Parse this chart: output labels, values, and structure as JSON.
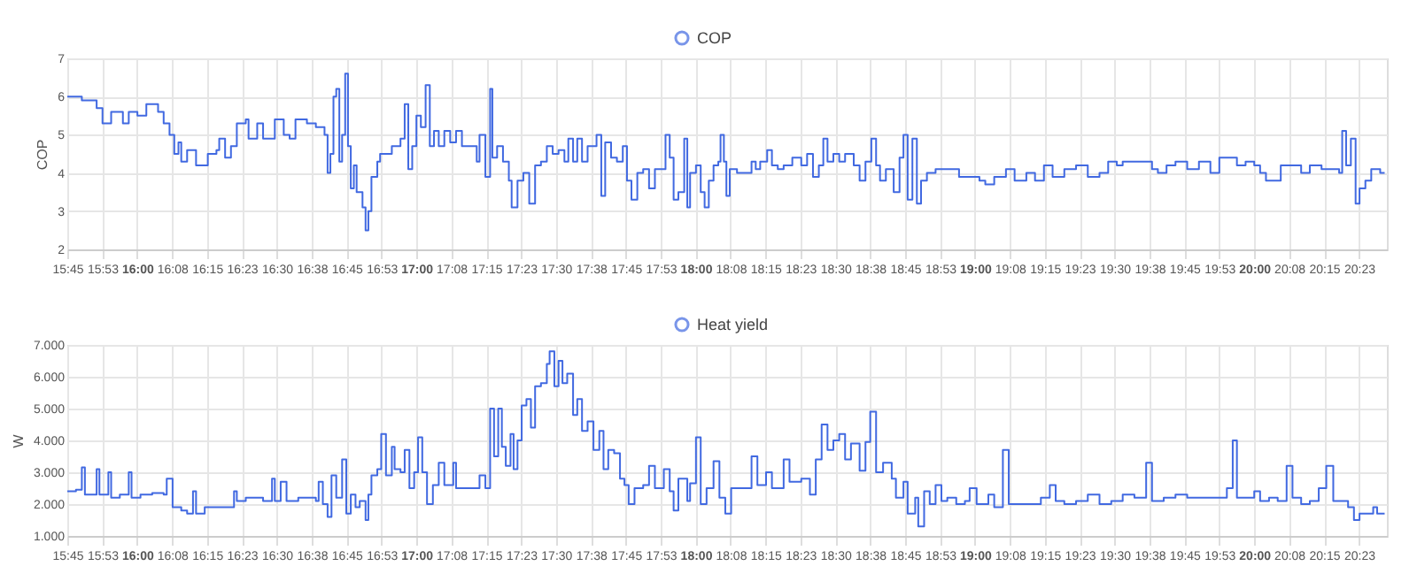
{
  "chart_data": [
    {
      "type": "step",
      "ylabel": "COP",
      "legend": "top",
      "grid": true,
      "xlim": [
        15.75,
        20.475
      ],
      "ylim": [
        2,
        7
      ],
      "yticks": [
        2,
        3,
        4,
        5,
        6,
        7
      ],
      "xticks": [
        {
          "value": 15.75,
          "label": "15:45"
        },
        {
          "value": 15.875,
          "label": "15:53"
        },
        {
          "value": 16.0,
          "label": "16:00"
        },
        {
          "value": 16.125,
          "label": "16:08"
        },
        {
          "value": 16.25,
          "label": "16:15"
        },
        {
          "value": 16.375,
          "label": "16:23"
        },
        {
          "value": 16.5,
          "label": "16:30"
        },
        {
          "value": 16.625,
          "label": "16:38"
        },
        {
          "value": 16.75,
          "label": "16:45"
        },
        {
          "value": 16.875,
          "label": "16:53"
        },
        {
          "value": 17.0,
          "label": "17:00"
        },
        {
          "value": 17.125,
          "label": "17:08"
        },
        {
          "value": 17.25,
          "label": "17:15"
        },
        {
          "value": 17.375,
          "label": "17:23"
        },
        {
          "value": 17.5,
          "label": "17:30"
        },
        {
          "value": 17.625,
          "label": "17:38"
        },
        {
          "value": 17.75,
          "label": "17:45"
        },
        {
          "value": 17.875,
          "label": "17:53"
        },
        {
          "value": 18.0,
          "label": "18:00"
        },
        {
          "value": 18.125,
          "label": "18:08"
        },
        {
          "value": 18.25,
          "label": "18:15"
        },
        {
          "value": 18.375,
          "label": "18:23"
        },
        {
          "value": 18.5,
          "label": "18:30"
        },
        {
          "value": 18.625,
          "label": "18:38"
        },
        {
          "value": 18.75,
          "label": "18:45"
        },
        {
          "value": 18.875,
          "label": "18:53"
        },
        {
          "value": 19.0,
          "label": "19:00"
        },
        {
          "value": 19.125,
          "label": "19:08"
        },
        {
          "value": 19.25,
          "label": "19:15"
        },
        {
          "value": 19.375,
          "label": "19:23"
        },
        {
          "value": 19.5,
          "label": "19:30"
        },
        {
          "value": 19.625,
          "label": "19:38"
        },
        {
          "value": 19.75,
          "label": "19:45"
        },
        {
          "value": 19.875,
          "label": "19:53"
        },
        {
          "value": 20.0,
          "label": "20:00"
        },
        {
          "value": 20.125,
          "label": "20:08"
        },
        {
          "value": 20.25,
          "label": "20:15"
        },
        {
          "value": 20.375,
          "label": "20:23"
        }
      ],
      "x": [
        15.75,
        15.802,
        15.855,
        15.876,
        15.907,
        15.949,
        15.97,
        16.001,
        16.033,
        16.075,
        16.095,
        16.116,
        16.133,
        16.148,
        16.158,
        16.179,
        16.211,
        16.232,
        16.253,
        16.284,
        16.294,
        16.315,
        16.336,
        16.357,
        16.389,
        16.399,
        16.43,
        16.451,
        16.493,
        16.525,
        16.546,
        16.567,
        16.608,
        16.64,
        16.671,
        16.682,
        16.692,
        16.703,
        16.713,
        16.724,
        16.734,
        16.745,
        16.755,
        16.765,
        16.776,
        16.786,
        16.807,
        16.818,
        16.828,
        16.839,
        16.86,
        16.87,
        16.912,
        16.943,
        16.958,
        16.971,
        16.985,
        17.0,
        17.016,
        17.033,
        17.048,
        17.063,
        17.08,
        17.1,
        17.121,
        17.142,
        17.163,
        17.205,
        17.216,
        17.226,
        17.247,
        17.264,
        17.272,
        17.289,
        17.31,
        17.331,
        17.341,
        17.362,
        17.383,
        17.404,
        17.425,
        17.446,
        17.467,
        17.488,
        17.509,
        17.53,
        17.544,
        17.561,
        17.576,
        17.593,
        17.613,
        17.645,
        17.662,
        17.676,
        17.697,
        17.718,
        17.739,
        17.754,
        17.77,
        17.791,
        17.812,
        17.833,
        17.854,
        17.875,
        17.892,
        17.907,
        17.921,
        17.938,
        17.959,
        17.97,
        17.98,
        18.001,
        18.018,
        18.032,
        18.047,
        18.064,
        18.081,
        18.089,
        18.101,
        18.11,
        18.122,
        18.148,
        18.179,
        18.2,
        18.215,
        18.231,
        18.256,
        18.273,
        18.294,
        18.315,
        18.346,
        18.378,
        18.399,
        18.42,
        18.441,
        18.457,
        18.472,
        18.493,
        18.514,
        18.535,
        18.566,
        18.587,
        18.608,
        18.629,
        18.646,
        18.66,
        18.681,
        18.709,
        18.73,
        18.744,
        18.759,
        18.776,
        18.792,
        18.807,
        18.828,
        18.859,
        18.891,
        18.922,
        18.943,
        18.985,
        19.016,
        19.037,
        19.069,
        19.111,
        19.142,
        19.184,
        19.215,
        19.247,
        19.278,
        19.32,
        19.362,
        19.404,
        19.446,
        19.477,
        19.508,
        19.529,
        19.571,
        19.613,
        19.634,
        19.655,
        19.686,
        19.718,
        19.76,
        19.802,
        19.843,
        19.875,
        19.906,
        19.938,
        19.969,
        20.0,
        20.021,
        20.042,
        20.074,
        20.095,
        20.137,
        20.168,
        20.199,
        20.241,
        20.283,
        20.304,
        20.315,
        20.329,
        20.346,
        20.363,
        20.377,
        20.398,
        20.419,
        20.451,
        20.467
      ],
      "series": [
        {
          "name": "COP",
          "color": "#4169e1",
          "values": [
            6.0,
            5.9,
            5.7,
            5.3,
            5.6,
            5.3,
            5.6,
            5.5,
            5.8,
            5.6,
            5.3,
            5.0,
            4.5,
            4.8,
            4.3,
            4.6,
            4.2,
            4.2,
            4.5,
            4.6,
            4.9,
            4.4,
            4.7,
            5.3,
            5.4,
            4.9,
            5.3,
            4.9,
            5.4,
            5.0,
            4.9,
            5.4,
            5.3,
            5.2,
            5.0,
            4.0,
            4.5,
            6.0,
            6.2,
            4.3,
            5.0,
            6.6,
            4.7,
            3.6,
            4.2,
            3.5,
            3.1,
            2.5,
            3.0,
            3.9,
            4.3,
            4.5,
            4.7,
            4.9,
            5.8,
            4.1,
            4.7,
            5.5,
            5.2,
            6.3,
            4.7,
            5.1,
            4.7,
            5.1,
            4.8,
            5.1,
            4.7,
            4.7,
            4.3,
            5.0,
            3.9,
            6.2,
            4.4,
            4.7,
            4.3,
            3.8,
            3.1,
            3.8,
            4.0,
            3.2,
            4.2,
            4.3,
            4.7,
            4.5,
            4.6,
            4.3,
            4.9,
            4.3,
            4.9,
            4.3,
            4.7,
            5.0,
            3.4,
            4.8,
            4.4,
            4.3,
            4.7,
            3.8,
            3.3,
            4.0,
            4.1,
            3.6,
            4.1,
            4.1,
            5.0,
            4.4,
            3.3,
            3.5,
            4.9,
            3.1,
            4.0,
            4.2,
            3.5,
            3.1,
            3.8,
            4.2,
            4.3,
            5.0,
            4.3,
            3.4,
            4.1,
            4.0,
            4.0,
            4.3,
            4.1,
            4.3,
            4.6,
            4.2,
            4.1,
            4.2,
            4.4,
            4.2,
            4.5,
            3.9,
            4.2,
            4.9,
            4.3,
            4.5,
            4.3,
            4.5,
            4.2,
            3.8,
            4.3,
            4.9,
            4.2,
            3.8,
            4.1,
            3.5,
            4.4,
            5.0,
            3.3,
            4.9,
            3.2,
            3.8,
            4.0,
            4.1,
            4.1,
            4.1,
            3.9,
            3.9,
            3.8,
            3.7,
            3.9,
            4.1,
            3.8,
            4.0,
            3.8,
            4.2,
            3.9,
            4.1,
            4.2,
            3.9,
            4.0,
            4.3,
            4.2,
            4.3,
            4.3,
            4.3,
            4.1,
            4.0,
            4.2,
            4.3,
            4.1,
            4.3,
            4.0,
            4.4,
            4.4,
            4.2,
            4.3,
            4.2,
            4.0,
            3.8,
            3.8,
            4.2,
            4.2,
            4.0,
            4.2,
            4.1,
            4.1,
            4.0,
            5.1,
            4.2,
            4.9,
            3.2,
            3.6,
            3.8,
            4.1,
            4.0,
            4.0
          ]
        }
      ]
    },
    {
      "type": "step",
      "ylabel": "W",
      "legend": "top",
      "grid": true,
      "xlim": [
        15.75,
        20.475
      ],
      "ylim": [
        1000,
        7000
      ],
      "yticks": [
        {
          "value": 1000,
          "label": "1.000"
        },
        {
          "value": 2000,
          "label": "2.000"
        },
        {
          "value": 3000,
          "label": "3.000"
        },
        {
          "value": 4000,
          "label": "4.000"
        },
        {
          "value": 5000,
          "label": "5.000"
        },
        {
          "value": 6000,
          "label": "6.000"
        },
        {
          "value": 7000,
          "label": "7.000"
        }
      ],
      "xticks": [
        {
          "value": 15.75,
          "label": "15:45"
        },
        {
          "value": 15.875,
          "label": "15:53"
        },
        {
          "value": 16.0,
          "label": "16:00"
        },
        {
          "value": 16.125,
          "label": "16:08"
        },
        {
          "value": 16.25,
          "label": "16:15"
        },
        {
          "value": 16.375,
          "label": "16:23"
        },
        {
          "value": 16.5,
          "label": "16:30"
        },
        {
          "value": 16.625,
          "label": "16:38"
        },
        {
          "value": 16.75,
          "label": "16:45"
        },
        {
          "value": 16.875,
          "label": "16:53"
        },
        {
          "value": 17.0,
          "label": "17:00"
        },
        {
          "value": 17.125,
          "label": "17:08"
        },
        {
          "value": 17.25,
          "label": "17:15"
        },
        {
          "value": 17.375,
          "label": "17:23"
        },
        {
          "value": 17.5,
          "label": "17:30"
        },
        {
          "value": 17.625,
          "label": "17:38"
        },
        {
          "value": 17.75,
          "label": "17:45"
        },
        {
          "value": 17.875,
          "label": "17:53"
        },
        {
          "value": 18.0,
          "label": "18:00"
        },
        {
          "value": 18.125,
          "label": "18:08"
        },
        {
          "value": 18.25,
          "label": "18:15"
        },
        {
          "value": 18.375,
          "label": "18:23"
        },
        {
          "value": 18.5,
          "label": "18:30"
        },
        {
          "value": 18.625,
          "label": "18:38"
        },
        {
          "value": 18.75,
          "label": "18:45"
        },
        {
          "value": 18.875,
          "label": "18:53"
        },
        {
          "value": 19.0,
          "label": "19:00"
        },
        {
          "value": 19.125,
          "label": "19:08"
        },
        {
          "value": 19.25,
          "label": "19:15"
        },
        {
          "value": 19.375,
          "label": "19:23"
        },
        {
          "value": 19.5,
          "label": "19:30"
        },
        {
          "value": 19.625,
          "label": "19:38"
        },
        {
          "value": 19.75,
          "label": "19:45"
        },
        {
          "value": 19.875,
          "label": "19:53"
        },
        {
          "value": 20.0,
          "label": "20:00"
        },
        {
          "value": 20.125,
          "label": "20:08"
        },
        {
          "value": 20.25,
          "label": "20:15"
        },
        {
          "value": 20.375,
          "label": "20:23"
        }
      ],
      "x": [
        15.75,
        15.781,
        15.802,
        15.813,
        15.855,
        15.865,
        15.897,
        15.907,
        15.938,
        15.97,
        15.98,
        16.012,
        16.054,
        16.095,
        16.106,
        16.127,
        16.158,
        16.179,
        16.2,
        16.211,
        16.242,
        16.284,
        16.326,
        16.347,
        16.357,
        16.389,
        16.451,
        16.483,
        16.493,
        16.514,
        16.535,
        16.577,
        16.64,
        16.65,
        16.665,
        16.682,
        16.696,
        16.713,
        16.734,
        16.749,
        16.765,
        16.782,
        16.797,
        16.818,
        16.828,
        16.839,
        16.86,
        16.874,
        16.891,
        16.912,
        16.922,
        16.943,
        16.958,
        16.975,
        16.992,
        17.006,
        17.021,
        17.038,
        17.059,
        17.08,
        17.1,
        17.132,
        17.142,
        17.174,
        17.216,
        17.226,
        17.247,
        17.264,
        17.278,
        17.293,
        17.306,
        17.32,
        17.337,
        17.348,
        17.362,
        17.377,
        17.394,
        17.41,
        17.425,
        17.446,
        17.467,
        17.477,
        17.494,
        17.509,
        17.523,
        17.54,
        17.561,
        17.576,
        17.593,
        17.613,
        17.634,
        17.655,
        17.67,
        17.687,
        17.708,
        17.729,
        17.745,
        17.76,
        17.781,
        17.812,
        17.833,
        17.854,
        17.886,
        17.907,
        17.921,
        17.938,
        17.97,
        17.98,
        18.001,
        18.018,
        18.039,
        18.064,
        18.085,
        18.106,
        18.127,
        18.168,
        18.2,
        18.221,
        18.252,
        18.273,
        18.315,
        18.336,
        18.378,
        18.409,
        18.43,
        18.451,
        18.472,
        18.493,
        18.514,
        18.535,
        18.556,
        18.587,
        18.608,
        18.625,
        18.646,
        18.671,
        18.702,
        18.717,
        18.744,
        18.759,
        18.786,
        18.797,
        18.818,
        18.838,
        18.859,
        18.88,
        18.901,
        18.933,
        18.964,
        18.981,
        19.006,
        19.048,
        19.069,
        19.1,
        19.121,
        19.153,
        19.194,
        19.236,
        19.268,
        19.289,
        19.32,
        19.362,
        19.404,
        19.446,
        19.488,
        19.529,
        19.571,
        19.613,
        19.634,
        19.676,
        19.718,
        19.76,
        19.802,
        19.843,
        19.885,
        19.902,
        19.923,
        19.938,
        19.969,
        20.0,
        20.021,
        20.053,
        20.084,
        20.116,
        20.137,
        20.168,
        20.199,
        20.231,
        20.258,
        20.283,
        20.315,
        20.336,
        20.357,
        20.377,
        20.398,
        20.426,
        20.44,
        20.467
      ],
      "series": [
        {
          "name": "Heat yield",
          "color": "#4169e1",
          "values": [
            2400,
            2450,
            3150,
            2300,
            3100,
            2300,
            3000,
            2200,
            2300,
            3000,
            2200,
            2300,
            2350,
            2300,
            2800,
            1900,
            1800,
            1700,
            2400,
            1700,
            1900,
            1900,
            1900,
            2400,
            2100,
            2200,
            2100,
            2800,
            2100,
            2700,
            2100,
            2200,
            2100,
            2700,
            2000,
            1600,
            2900,
            2200,
            3400,
            1700,
            2300,
            1900,
            2100,
            1500,
            2300,
            2900,
            3100,
            4200,
            2900,
            3800,
            3100,
            3000,
            3700,
            2500,
            3000,
            4100,
            3000,
            2000,
            2600,
            3300,
            2600,
            3300,
            2500,
            2500,
            2500,
            2900,
            2500,
            5000,
            3500,
            5000,
            3800,
            3200,
            4200,
            3100,
            4000,
            5100,
            5300,
            4400,
            5700,
            5800,
            6400,
            6800,
            5700,
            6500,
            5800,
            6100,
            4800,
            5300,
            4300,
            4600,
            3700,
            4300,
            3100,
            3700,
            3600,
            2800,
            2600,
            2000,
            2500,
            2600,
            3200,
            2500,
            3100,
            2400,
            1800,
            2800,
            2100,
            2650,
            4100,
            2000,
            2500,
            3350,
            2200,
            1700,
            2500,
            2500,
            3500,
            2600,
            3000,
            2500,
            3400,
            2700,
            2800,
            2300,
            3400,
            4500,
            3700,
            4000,
            4200,
            3400,
            3900,
            3050,
            3950,
            4900,
            3000,
            3300,
            2800,
            2200,
            2700,
            1700,
            2200,
            1300,
            2400,
            2000,
            2600,
            2100,
            2200,
            2000,
            2100,
            2500,
            2000,
            2300,
            1900,
            3700,
            2000,
            2000,
            2000,
            2200,
            2600,
            2100,
            2000,
            2100,
            2300,
            2000,
            2100,
            2300,
            2200,
            3300,
            2100,
            2200,
            2300,
            2200,
            2200,
            2200,
            2200,
            2500,
            4000,
            2200,
            2200,
            2400,
            2100,
            2200,
            2100,
            3200,
            2200,
            2000,
            2100,
            2500,
            3200,
            2100,
            2100,
            1900,
            1500,
            1700,
            1700,
            1900,
            1700,
            1700
          ]
        }
      ]
    }
  ]
}
